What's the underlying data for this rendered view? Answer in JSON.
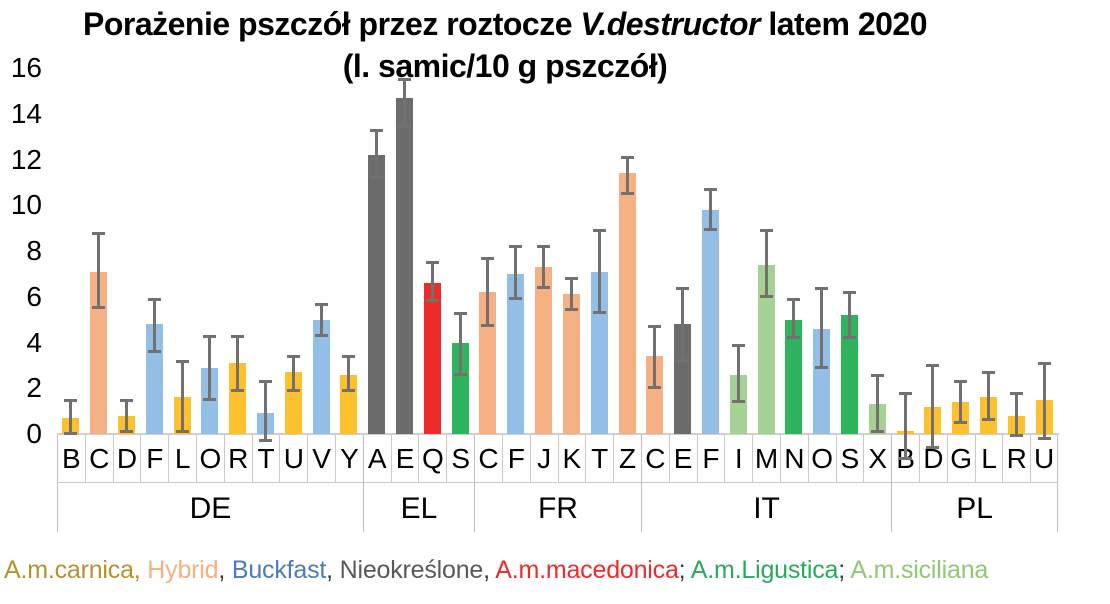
{
  "title": {
    "line1_prefix": "Porażenie pszczół przez roztocze ",
    "line1_italic": "V.destructor",
    "line1_suffix": " latem 2020",
    "line2": "(l. samic/10 g pszczół)"
  },
  "y_axis": {
    "ticks": [
      16,
      14,
      12,
      10,
      8,
      6,
      4,
      2,
      0
    ],
    "min": 0,
    "max": 16
  },
  "chart_data": {
    "type": "bar",
    "title": "Porażenie pszczół przez roztocze V.destructor latem 2020 (l. samic/10 g pszczół)",
    "ylabel": "l. samic/10 g pszczół",
    "ylim": [
      0,
      16
    ],
    "grid": false,
    "error_bar_color": "#757070",
    "breed_colors": {
      "A.m.carnica": "#FCC12D",
      "Hybrid": "#F5B183",
      "Buckfast": "#93BFE6",
      "Nieokreślone": "#6C6C6C",
      "A.m.macedonica": "#EC2B2B",
      "A.m.Ligustica": "#2DB45D",
      "A.m.siciliana": "#A5D294"
    },
    "groups": [
      {
        "label": "DE",
        "bars": [
          {
            "label": "B",
            "breed": "A.m.carnica",
            "value": 0.7,
            "lo": 0.0,
            "hi": 1.5
          },
          {
            "label": "C",
            "breed": "Hybrid",
            "value": 7.1,
            "lo": 5.5,
            "hi": 8.8
          },
          {
            "label": "D",
            "breed": "A.m.carnica",
            "value": 0.8,
            "lo": 0.1,
            "hi": 1.5
          },
          {
            "label": "F",
            "breed": "Buckfast",
            "value": 4.8,
            "lo": 3.6,
            "hi": 5.9
          },
          {
            "label": "L",
            "breed": "A.m.carnica",
            "value": 1.6,
            "lo": 0.1,
            "hi": 3.2
          },
          {
            "label": "O",
            "breed": "Buckfast",
            "value": 2.9,
            "lo": 1.5,
            "hi": 4.3
          },
          {
            "label": "R",
            "breed": "A.m.carnica",
            "value": 3.1,
            "lo": 1.9,
            "hi": 4.3
          },
          {
            "label": "T",
            "breed": "Buckfast",
            "value": 0.9,
            "lo": -0.3,
            "hi": 2.3
          },
          {
            "label": "U",
            "breed": "A.m.carnica",
            "value": 2.7,
            "lo": 1.9,
            "hi": 3.4
          },
          {
            "label": "V",
            "breed": "Buckfast",
            "value": 5.0,
            "lo": 4.3,
            "hi": 5.7
          },
          {
            "label": "Y",
            "breed": "A.m.carnica",
            "value": 2.6,
            "lo": 1.9,
            "hi": 3.4
          }
        ]
      },
      {
        "label": "EL",
        "bars": [
          {
            "label": "A",
            "breed": "Nieokreślone",
            "value": 12.2,
            "lo": 11.2,
            "hi": 13.3
          },
          {
            "label": "E",
            "breed": "Nieokreślone",
            "value": 14.7,
            "lo": 13.4,
            "hi": 15.5
          },
          {
            "label": "Q",
            "breed": "A.m.macedonica",
            "value": 6.6,
            "lo": 5.8,
            "hi": 7.5
          },
          {
            "label": "S",
            "breed": "A.m.Ligustica",
            "value": 4.0,
            "lo": 2.6,
            "hi": 5.3
          }
        ]
      },
      {
        "label": "FR",
        "bars": [
          {
            "label": "C",
            "breed": "Hybrid",
            "value": 6.2,
            "lo": 4.7,
            "hi": 7.7
          },
          {
            "label": "F",
            "breed": "Buckfast",
            "value": 7.0,
            "lo": 5.9,
            "hi": 8.2
          },
          {
            "label": "J",
            "breed": "Hybrid",
            "value": 7.3,
            "lo": 6.4,
            "hi": 8.2
          },
          {
            "label": "K",
            "breed": "Hybrid",
            "value": 6.1,
            "lo": 5.4,
            "hi": 6.8
          },
          {
            "label": "T",
            "breed": "Buckfast",
            "value": 7.1,
            "lo": 5.3,
            "hi": 8.9
          },
          {
            "label": "Z",
            "breed": "Hybrid",
            "value": 11.4,
            "lo": 10.5,
            "hi": 12.1
          }
        ]
      },
      {
        "label": "IT",
        "bars": [
          {
            "label": "C",
            "breed": "Hybrid",
            "value": 3.4,
            "lo": 2.0,
            "hi": 4.7
          },
          {
            "label": "E",
            "breed": "Nieokreślone",
            "value": 4.8,
            "lo": 3.2,
            "hi": 6.4
          },
          {
            "label": "F",
            "breed": "Buckfast",
            "value": 9.8,
            "lo": 8.9,
            "hi": 10.7
          },
          {
            "label": "I",
            "breed": "A.m.siciliana",
            "value": 2.6,
            "lo": 1.4,
            "hi": 3.9
          },
          {
            "label": "M",
            "breed": "A.m.siciliana",
            "value": 7.4,
            "lo": 6.0,
            "hi": 8.9
          },
          {
            "label": "N",
            "breed": "A.m.Ligustica",
            "value": 5.0,
            "lo": 4.2,
            "hi": 5.9
          },
          {
            "label": "O",
            "breed": "Buckfast",
            "value": 4.6,
            "lo": 2.9,
            "hi": 6.4
          },
          {
            "label": "S",
            "breed": "A.m.Ligustica",
            "value": 5.2,
            "lo": 4.2,
            "hi": 6.2
          },
          {
            "label": "X",
            "breed": "A.m.siciliana",
            "value": 1.3,
            "lo": 0.1,
            "hi": 2.6
          }
        ]
      },
      {
        "label": "PL",
        "bars": [
          {
            "label": "B",
            "breed": "A.m.carnica",
            "value": 0.15,
            "lo": -1.1,
            "hi": 1.8
          },
          {
            "label": "D",
            "breed": "A.m.carnica",
            "value": 1.2,
            "lo": -0.6,
            "hi": 3.0
          },
          {
            "label": "G",
            "breed": "A.m.carnica",
            "value": 1.4,
            "lo": 0.5,
            "hi": 2.3
          },
          {
            "label": "L",
            "breed": "A.m.carnica",
            "value": 1.6,
            "lo": 0.6,
            "hi": 2.7
          },
          {
            "label": "R",
            "breed": "A.m.carnica",
            "value": 0.8,
            "lo": -0.1,
            "hi": 1.8
          },
          {
            "label": "U",
            "breed": "A.m.carnica",
            "value": 1.5,
            "lo": -0.2,
            "hi": 3.1
          }
        ]
      }
    ]
  },
  "legend": {
    "items": [
      {
        "label": "A.m.carnica",
        "color": "#B8912F",
        "sep": ", ",
        "sep_color": "#B8912F"
      },
      {
        "label": "Hybrid",
        "color": "#F5B183",
        "sep": ", ",
        "sep_color": "#3B3838"
      },
      {
        "label": "Buckfast",
        "color": "#4E79BD",
        "sep": ", ",
        "sep_color": "#3B3838"
      },
      {
        "label": "Nieokreślone",
        "color": "#595959",
        "sep": ", ",
        "sep_color": "#3B3838"
      },
      {
        "label": "A.m.macedonica",
        "color": "#EC2B2B",
        "sep": "; ",
        "sep_color": "#3B3838"
      },
      {
        "label": "A.m.Ligustica",
        "color": "#29A95C",
        "sep": "; ",
        "sep_color": "#3B3838"
      },
      {
        "label": "A.m.siciliana",
        "color": "#90C876",
        "sep": "",
        "sep_color": "#3B3838"
      }
    ]
  }
}
